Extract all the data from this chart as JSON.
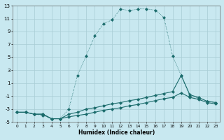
{
  "xlabel": "Humidex (Indice chaleur)",
  "bg_color": "#c8e8f0",
  "grid_color": "#a8ccd4",
  "line_color": "#1a6b6b",
  "xlim": [
    -0.5,
    23.5
  ],
  "ylim": [
    -5,
    13
  ],
  "xtick_vals": [
    0,
    1,
    2,
    3,
    4,
    5,
    6,
    7,
    8,
    9,
    10,
    11,
    12,
    13,
    14,
    15,
    16,
    17,
    18,
    19,
    20,
    21,
    22,
    23
  ],
  "ytick_vals": [
    -5,
    -3,
    -1,
    1,
    3,
    5,
    7,
    9,
    11,
    13
  ],
  "s1_x": [
    0,
    1,
    2,
    3,
    4,
    5,
    6,
    7,
    8,
    9,
    10,
    11,
    12,
    13,
    14,
    15,
    16,
    17,
    18,
    19,
    20,
    21,
    22,
    23
  ],
  "s1_y": [
    -3.5,
    -3.5,
    -3.8,
    -4.0,
    -4.5,
    -4.5,
    -3.0,
    2.2,
    5.2,
    8.3,
    10.2,
    10.8,
    12.5,
    12.2,
    12.5,
    12.5,
    12.3,
    11.2,
    5.2,
    2.2,
    -1.0,
    -1.3,
    -1.8,
    -2.0
  ],
  "s2_x": [
    0,
    1,
    2,
    3,
    4,
    5,
    6,
    7,
    8,
    9,
    10,
    11,
    12,
    13,
    14,
    15,
    16,
    17,
    18,
    19,
    20,
    21,
    22,
    23
  ],
  "s2_y": [
    -3.5,
    -3.5,
    -3.8,
    -3.8,
    -4.5,
    -4.5,
    -3.8,
    -3.5,
    -3.0,
    -2.8,
    -2.5,
    -2.2,
    -2.0,
    -1.7,
    -1.5,
    -1.2,
    -0.9,
    -0.6,
    -0.3,
    2.2,
    -0.8,
    -1.2,
    -1.8,
    -2.0
  ],
  "s3_x": [
    0,
    1,
    2,
    3,
    4,
    5,
    6,
    7,
    8,
    9,
    10,
    11,
    12,
    13,
    14,
    15,
    16,
    17,
    18,
    19,
    20,
    21,
    22,
    23
  ],
  "s3_y": [
    -3.5,
    -3.5,
    -3.8,
    -3.8,
    -4.5,
    -4.5,
    -4.2,
    -4.0,
    -3.8,
    -3.5,
    -3.2,
    -3.0,
    -2.8,
    -2.5,
    -2.3,
    -2.0,
    -1.7,
    -1.4,
    -1.2,
    -0.5,
    -1.2,
    -1.5,
    -2.0,
    -2.2
  ]
}
